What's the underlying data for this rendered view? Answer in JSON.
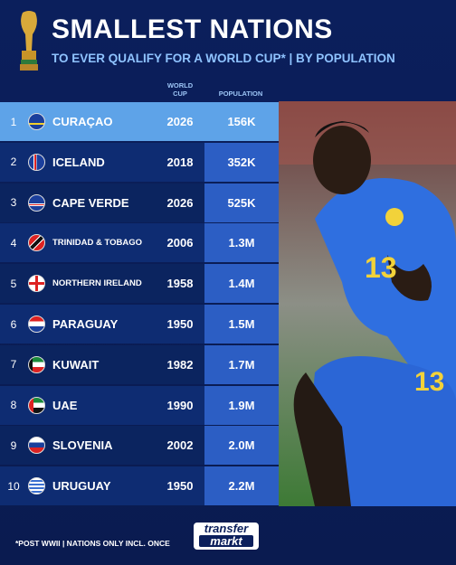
{
  "header": {
    "title": "SMALLEST NATIONS",
    "subtitle": "TO EVER QUALIFY FOR A WORLD CUP* | BY POPULATION"
  },
  "table": {
    "columns": [
      "WORLD CUP",
      "POPULATION"
    ],
    "rows": [
      [
        1,
        "CURAÇAO",
        2026,
        "156K"
      ],
      [
        2,
        "ICELAND",
        2018,
        "352K"
      ],
      [
        3,
        "CAPE VERDE",
        2026,
        "525K"
      ],
      [
        4,
        "TRINIDAD & TOBAGO",
        2006,
        "1.3M"
      ],
      [
        5,
        "NORTHERN IRELAND",
        1958,
        "1.4M"
      ],
      [
        6,
        "PARAGUAY",
        1950,
        "1.5M"
      ],
      [
        7,
        "KUWAIT",
        1982,
        "1.7M"
      ],
      [
        8,
        "UAE",
        1990,
        "1.9M"
      ],
      [
        9,
        "SLOVENIA",
        2002,
        "2.0M"
      ],
      [
        10,
        "URUGUAY",
        1950,
        "2.2M"
      ]
    ]
  },
  "footer": {
    "note": "*POST WWII | NATIONS ONLY INCL. ONCE",
    "logo": [
      "transfer",
      "markt"
    ]
  }
}
